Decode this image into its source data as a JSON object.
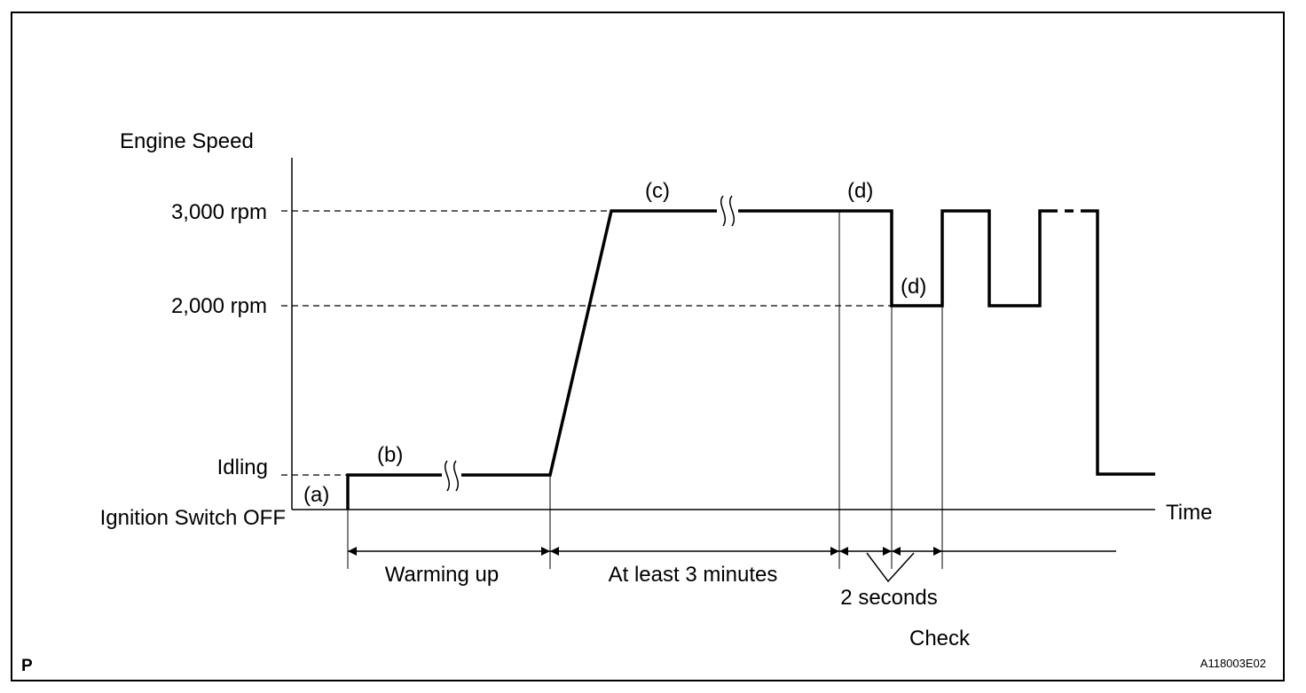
{
  "diagram": {
    "y_axis_title": "Engine Speed",
    "x_axis_title": "Time",
    "levels": {
      "rpm_3000": "3,000 rpm",
      "rpm_2000": "2,000 rpm",
      "idling": "Idling",
      "ignition_off": "Ignition Switch OFF"
    },
    "phase_markers": {
      "a": "(a)",
      "b": "(b)",
      "c": "(c)",
      "d_top": "(d)",
      "d_low": "(d)"
    },
    "intervals": {
      "warming_up": "Warming up",
      "at_least_3_minutes": "At least 3 minutes",
      "two_seconds": "2 seconds",
      "check": "Check"
    },
    "corner_label": "P",
    "figure_code": "A118003E02"
  }
}
